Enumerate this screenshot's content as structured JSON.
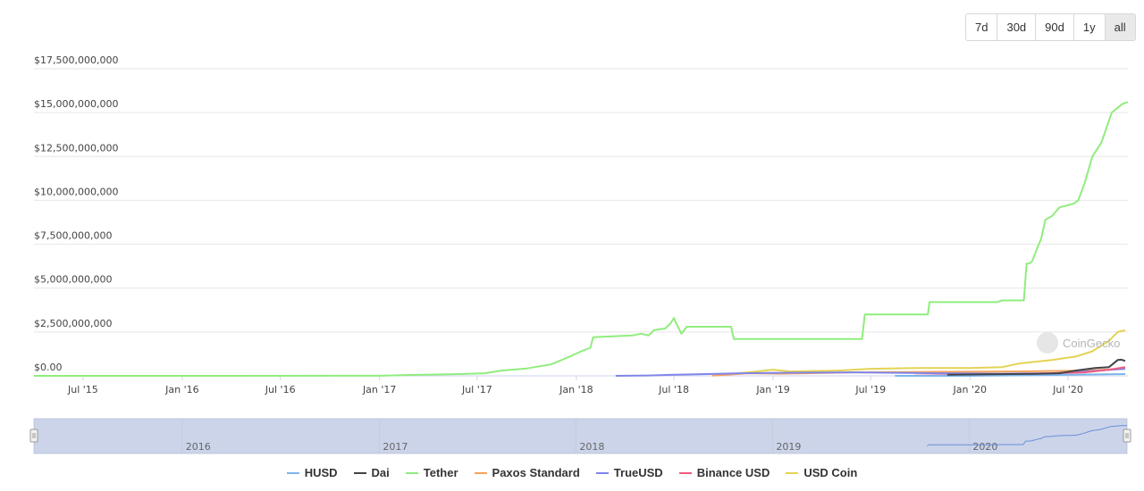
{
  "range_buttons": [
    "7d",
    "30d",
    "90d",
    "1y",
    "all"
  ],
  "active_range": "all",
  "watermark": "CoinGecko",
  "chart_data": {
    "type": "line",
    "y_ticks": [
      "$0.00",
      "$2,500,000,000",
      "$5,000,000,000",
      "$7,500,000,000",
      "$10,000,000,000",
      "$12,500,000,000",
      "$15,000,000,000",
      "$17,500,000,000"
    ],
    "ylim": [
      0,
      17500000000
    ],
    "x_range": [
      "2015-04-01",
      "2020-10-20"
    ],
    "x_ticks": [
      {
        "date": "2015-07-01",
        "label": "Jul '15"
      },
      {
        "date": "2016-01-01",
        "label": "Jan '16"
      },
      {
        "date": "2016-07-01",
        "label": "Jul '16"
      },
      {
        "date": "2017-01-01",
        "label": "Jan '17"
      },
      {
        "date": "2017-07-01",
        "label": "Jul '17"
      },
      {
        "date": "2018-01-01",
        "label": "Jan '18"
      },
      {
        "date": "2018-07-01",
        "label": "Jul '18"
      },
      {
        "date": "2019-01-01",
        "label": "Jan '19"
      },
      {
        "date": "2019-07-01",
        "label": "Jul '19"
      },
      {
        "date": "2020-01-01",
        "label": "Jan '20"
      },
      {
        "date": "2020-07-01",
        "label": "Jul '20"
      }
    ],
    "navigator_labels": [
      {
        "date": "2016-01-01",
        "label": "2016"
      },
      {
        "date": "2017-01-01",
        "label": "2017"
      },
      {
        "date": "2018-01-01",
        "label": "2018"
      },
      {
        "date": "2019-01-01",
        "label": "2019"
      },
      {
        "date": "2020-01-01",
        "label": "2020"
      }
    ],
    "legend_position": "bottom",
    "grid": true,
    "series": [
      {
        "name": "HUSD",
        "color": "#7cb5ec",
        "points": [
          [
            "2019-08-15",
            0
          ],
          [
            "2020-01-01",
            0
          ],
          [
            "2020-06-01",
            50000000
          ],
          [
            "2020-10-15",
            100000000
          ]
        ]
      },
      {
        "name": "Dai",
        "color": "#434348",
        "points": [
          [
            "2019-11-20",
            60000000
          ],
          [
            "2020-02-01",
            90000000
          ],
          [
            "2020-05-01",
            110000000
          ],
          [
            "2020-06-15",
            150000000
          ],
          [
            "2020-07-15",
            300000000
          ],
          [
            "2020-08-20",
            450000000
          ],
          [
            "2020-09-15",
            500000000
          ],
          [
            "2020-09-25",
            750000000
          ],
          [
            "2020-10-01",
            900000000
          ],
          [
            "2020-10-08",
            920000000
          ],
          [
            "2020-10-15",
            850000000
          ]
        ]
      },
      {
        "name": "Tether",
        "color": "#90ed7d",
        "points": [
          [
            "2015-04-01",
            0
          ],
          [
            "2016-12-31",
            6000000
          ],
          [
            "2017-03-01",
            50000000
          ],
          [
            "2017-06-01",
            100000000
          ],
          [
            "2017-07-15",
            150000000
          ],
          [
            "2017-08-15",
            300000000
          ],
          [
            "2017-10-01",
            420000000
          ],
          [
            "2017-11-15",
            650000000
          ],
          [
            "2017-12-20",
            1100000000
          ],
          [
            "2018-01-10",
            1400000000
          ],
          [
            "2018-01-27",
            1600000000
          ],
          [
            "2018-02-01",
            2200000000
          ],
          [
            "2018-04-15",
            2300000000
          ],
          [
            "2018-05-01",
            2400000000
          ],
          [
            "2018-05-15",
            2300000000
          ],
          [
            "2018-05-25",
            2600000000
          ],
          [
            "2018-06-15",
            2700000000
          ],
          [
            "2018-06-25",
            3000000000
          ],
          [
            "2018-07-01",
            3300000000
          ],
          [
            "2018-07-05",
            3000000000
          ],
          [
            "2018-07-15",
            2400000000
          ],
          [
            "2018-07-25",
            2800000000
          ],
          [
            "2018-08-10",
            2800000000
          ],
          [
            "2018-10-15",
            2800000000
          ],
          [
            "2018-10-20",
            2100000000
          ],
          [
            "2019-01-15",
            2100000000
          ],
          [
            "2019-06-15",
            2100000000
          ],
          [
            "2019-06-20",
            3500000000
          ],
          [
            "2019-10-15",
            3500000000
          ],
          [
            "2019-10-18",
            4200000000
          ],
          [
            "2020-02-20",
            4200000000
          ],
          [
            "2020-03-01",
            4300000000
          ],
          [
            "2020-04-10",
            4300000000
          ],
          [
            "2020-04-15",
            6400000000
          ],
          [
            "2020-04-20",
            6400000000
          ],
          [
            "2020-04-25",
            6500000000
          ],
          [
            "2020-05-05",
            7300000000
          ],
          [
            "2020-05-12",
            7800000000
          ],
          [
            "2020-05-20",
            8900000000
          ],
          [
            "2020-06-01",
            9100000000
          ],
          [
            "2020-06-15",
            9600000000
          ],
          [
            "2020-07-10",
            9800000000
          ],
          [
            "2020-07-20",
            10000000000
          ],
          [
            "2020-08-01",
            11000000000
          ],
          [
            "2020-08-15",
            12500000000
          ],
          [
            "2020-09-01",
            13300000000
          ],
          [
            "2020-09-20",
            15000000000
          ],
          [
            "2020-10-10",
            15500000000
          ],
          [
            "2020-10-20",
            15600000000
          ]
        ]
      },
      {
        "name": "Paxos Standard",
        "color": "#f7a35c",
        "points": [
          [
            "2018-09-10",
            10000000
          ],
          [
            "2018-10-01",
            50000000
          ],
          [
            "2018-11-15",
            150000000
          ],
          [
            "2019-01-15",
            120000000
          ],
          [
            "2019-06-01",
            200000000
          ],
          [
            "2019-11-01",
            230000000
          ],
          [
            "2020-04-01",
            250000000
          ],
          [
            "2020-08-01",
            300000000
          ],
          [
            "2020-10-15",
            400000000
          ]
        ]
      },
      {
        "name": "TrueUSD",
        "color": "#8085e9",
        "points": [
          [
            "2018-03-15",
            0
          ],
          [
            "2018-05-15",
            20000000
          ],
          [
            "2018-07-01",
            60000000
          ],
          [
            "2018-09-01",
            100000000
          ],
          [
            "2018-11-01",
            150000000
          ],
          [
            "2019-02-01",
            180000000
          ],
          [
            "2019-06-01",
            200000000
          ],
          [
            "2019-11-01",
            150000000
          ],
          [
            "2020-03-01",
            120000000
          ],
          [
            "2020-06-01",
            150000000
          ],
          [
            "2020-08-01",
            250000000
          ],
          [
            "2020-10-15",
            400000000
          ]
        ]
      },
      {
        "name": "Binance USD",
        "color": "#f15c80",
        "points": [
          [
            "2019-09-20",
            10000000
          ],
          [
            "2019-12-01",
            30000000
          ],
          [
            "2020-02-01",
            60000000
          ],
          [
            "2020-04-01",
            100000000
          ],
          [
            "2020-06-01",
            150000000
          ],
          [
            "2020-08-01",
            200000000
          ],
          [
            "2020-09-15",
            350000000
          ],
          [
            "2020-10-15",
            500000000
          ]
        ]
      },
      {
        "name": "USD Coin",
        "color": "#e4d354",
        "points": [
          [
            "2018-10-01",
            50000000
          ],
          [
            "2018-12-01",
            250000000
          ],
          [
            "2019-01-01",
            350000000
          ],
          [
            "2019-02-01",
            250000000
          ],
          [
            "2019-05-01",
            300000000
          ],
          [
            "2019-07-01",
            400000000
          ],
          [
            "2019-10-01",
            450000000
          ],
          [
            "2020-01-01",
            450000000
          ],
          [
            "2020-03-01",
            500000000
          ],
          [
            "2020-04-01",
            700000000
          ],
          [
            "2020-06-01",
            900000000
          ],
          [
            "2020-07-15",
            1100000000
          ],
          [
            "2020-08-15",
            1400000000
          ],
          [
            "2020-09-15",
            2000000000
          ],
          [
            "2020-10-01",
            2500000000
          ],
          [
            "2020-10-15",
            2600000000
          ]
        ]
      }
    ]
  }
}
